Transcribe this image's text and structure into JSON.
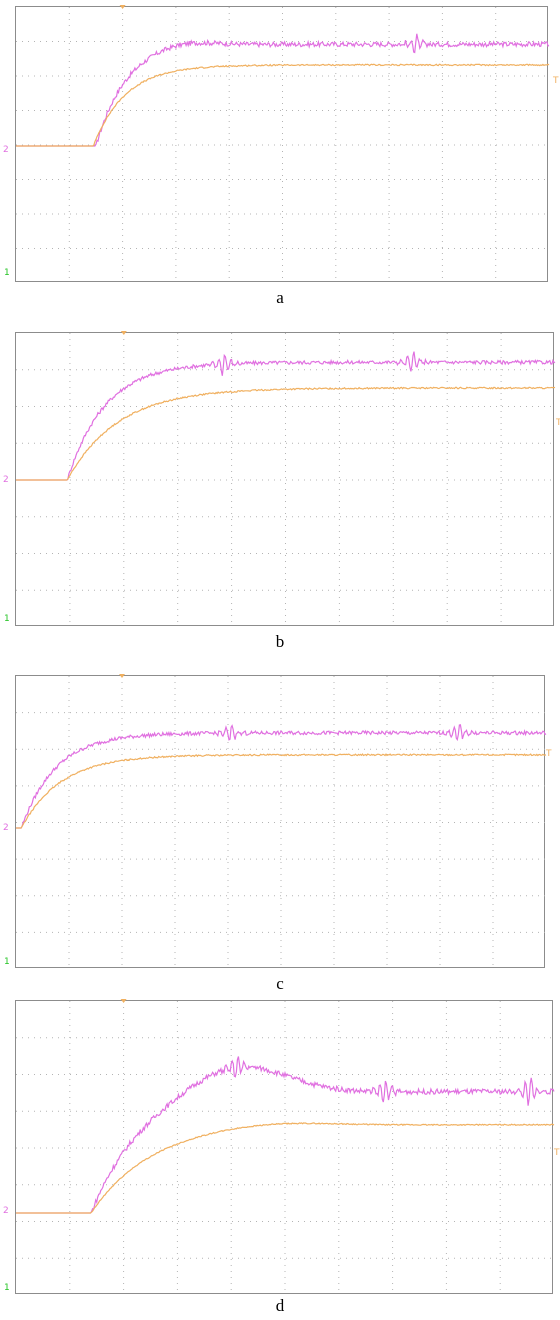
{
  "figure": {
    "colors": {
      "magenta": "#e070e0",
      "orange": "#f0b060",
      "ground_marker": "#22c322"
    },
    "icons": {
      "ground": "ground-marker-icon",
      "trigger": "trigger-marker-icon"
    }
  },
  "chart_data": [
    {
      "type": "line",
      "caption": "a",
      "ch2_marker": "2",
      "ch1_marker": "1",
      "trigger_marker": "T",
      "grid": {
        "divisions_x": 10,
        "divisions_y": 8
      },
      "ylim": [
        -4,
        4
      ],
      "xlim": [
        0,
        10
      ],
      "series": [
        {
          "color": "magenta",
          "baseline": 0,
          "final": 2.95,
          "step_start": 1.5,
          "tau": 0.55,
          "overshoot": 0.05,
          "noise": 0.07,
          "bursts": [
            {
              "t": 7.5,
              "amp": 0.35
            }
          ]
        },
        {
          "color": "orange",
          "baseline": 0,
          "final": 2.35,
          "step_start": 1.45,
          "tau": 0.6,
          "overshoot": 0,
          "noise": 0.02,
          "bursts": []
        }
      ]
    },
    {
      "type": "line",
      "caption": "b",
      "ch2_marker": "2",
      "ch1_marker": "1",
      "trigger_marker": "T",
      "grid": {
        "divisions_x": 10,
        "divisions_y": 8
      },
      "ylim": [
        -4,
        4
      ],
      "xlim": [
        0,
        10
      ],
      "series": [
        {
          "color": "magenta",
          "baseline": 0,
          "final": 3.2,
          "step_start": 0.95,
          "tau": 0.7,
          "overshoot": 0,
          "noise": 0.05,
          "bursts": [
            {
              "t": 3.85,
              "amp": 0.35
            },
            {
              "t": 7.35,
              "amp": 0.35
            }
          ]
        },
        {
          "color": "orange",
          "baseline": 0,
          "final": 2.5,
          "step_start": 0.95,
          "tau": 0.95,
          "overshoot": 0,
          "noise": 0.02,
          "bursts": []
        }
      ]
    },
    {
      "type": "line",
      "caption": "c",
      "ch2_marker": "2",
      "ch1_marker": "1",
      "trigger_marker": "T",
      "grid": {
        "divisions_x": 10,
        "divisions_y": 8
      },
      "ylim": [
        -4,
        4
      ],
      "xlim": [
        0,
        10
      ],
      "series": [
        {
          "color": "magenta",
          "baseline": 0,
          "final": 2.6,
          "step_start": 0.1,
          "tau": 0.65,
          "overshoot": 0,
          "noise": 0.05,
          "bursts": [
            {
              "t": 4.05,
              "amp": 0.3
            },
            {
              "t": 8.35,
              "amp": 0.3
            }
          ]
        },
        {
          "color": "orange",
          "baseline": 0,
          "final": 2.0,
          "step_start": 0.1,
          "tau": 0.75,
          "overshoot": 0,
          "noise": 0.02,
          "bursts": []
        }
      ]
    },
    {
      "type": "line",
      "caption": "d",
      "ch2_marker": "2",
      "ch1_marker": "1",
      "trigger_marker": "T",
      "grid": {
        "divisions_x": 10,
        "divisions_y": 8
      },
      "ylim": [
        -4,
        4
      ],
      "xlim": [
        0,
        10
      ],
      "series": [
        {
          "color": "magenta",
          "baseline": 0,
          "final": 3.3,
          "step_start": 1.4,
          "tau": 0.9,
          "overshoot": 0.25,
          "noise": 0.07,
          "bursts": [
            {
              "t": 4.1,
              "amp": 0.4
            },
            {
              "t": 6.85,
              "amp": 0.4
            },
            {
              "t": 9.55,
              "amp": 0.45
            }
          ]
        },
        {
          "color": "orange",
          "baseline": 0,
          "final": 2.4,
          "step_start": 1.4,
          "tau": 1.1,
          "overshoot": 0.05,
          "noise": 0.015,
          "bursts": []
        }
      ]
    }
  ]
}
